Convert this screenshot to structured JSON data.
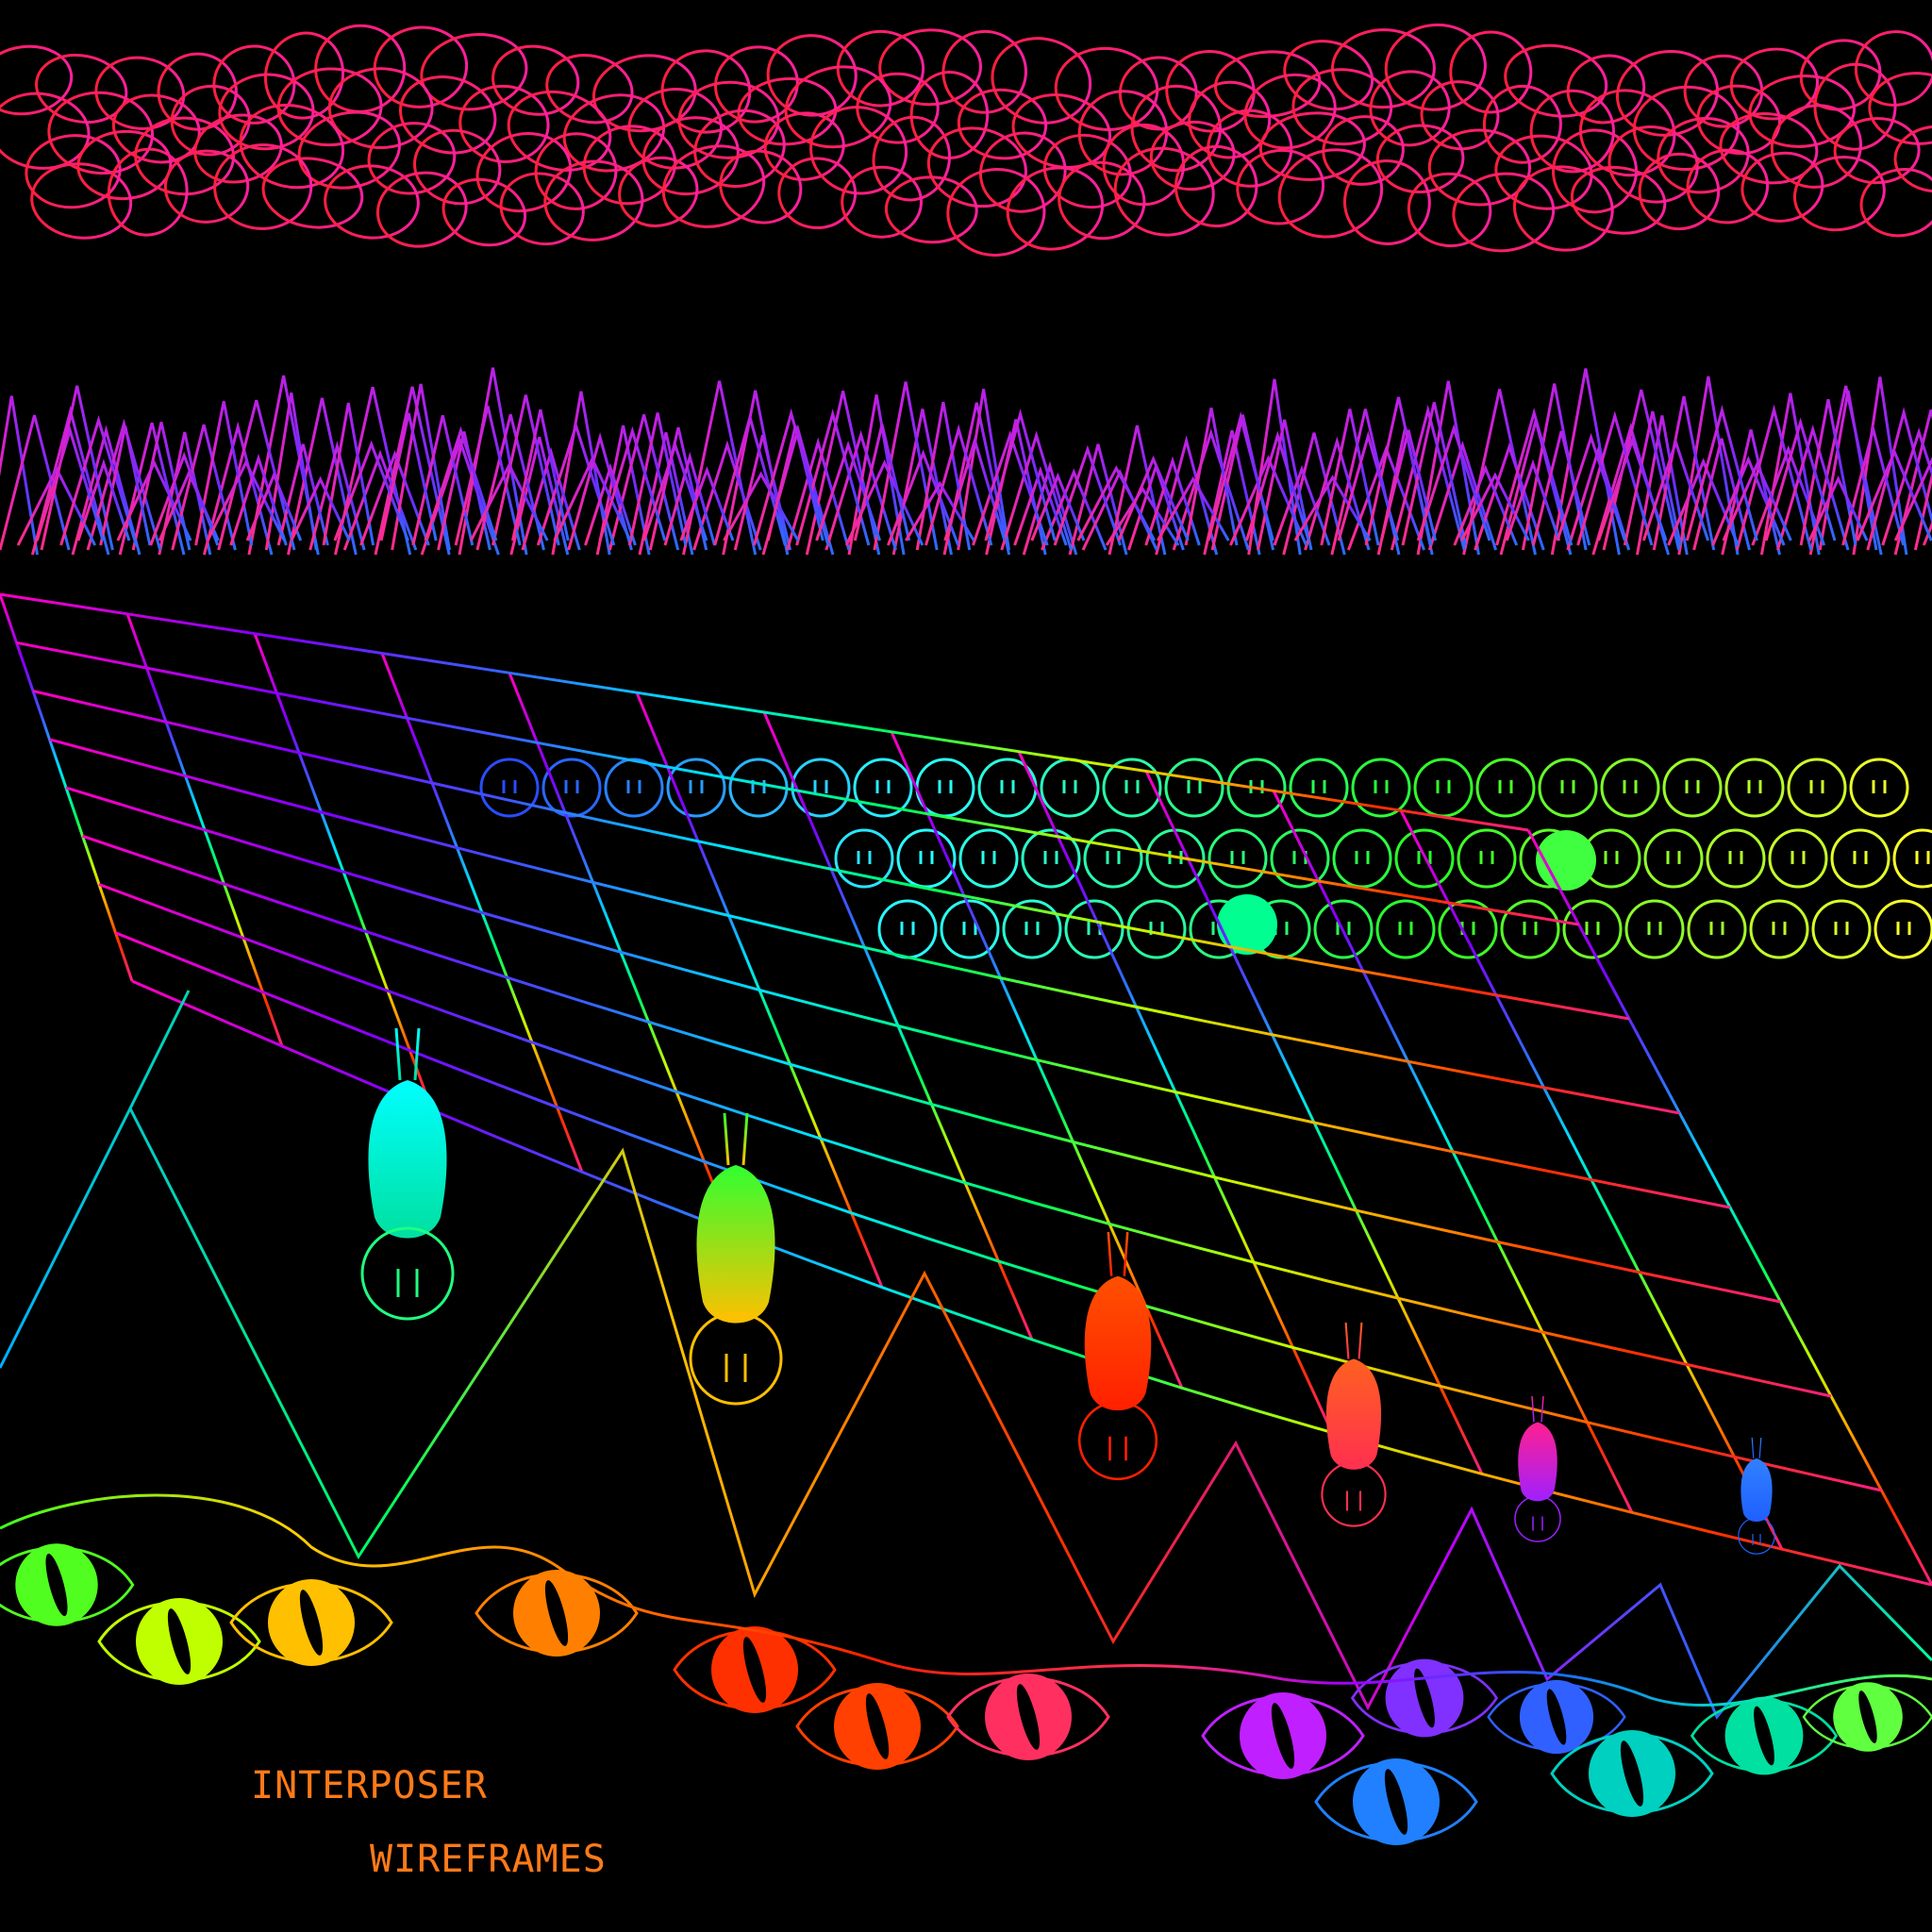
{
  "captions": {
    "line1": "INTERPOSER",
    "line2": "WIREFRAMES"
  },
  "colors": {
    "background": "#000000",
    "caption": "#ff7a18",
    "clouds": [
      "#ff1f3d",
      "#ff1f8f"
    ],
    "mountains": [
      "#ff2d8a",
      "#c81fe0",
      "#6a2dff",
      "#2a6dff"
    ],
    "spectrum": [
      "#ff0040",
      "#ff00c0",
      "#8000ff",
      "#0040ff",
      "#00e0ff",
      "#00ff60",
      "#c0ff00",
      "#ffc000",
      "#ff4000"
    ]
  },
  "icons": [
    "cloud-outline-icon",
    "mountain-peak-icon",
    "round-face-icon",
    "hanging-figure-icon",
    "eye-icon",
    "flame-icon"
  ]
}
